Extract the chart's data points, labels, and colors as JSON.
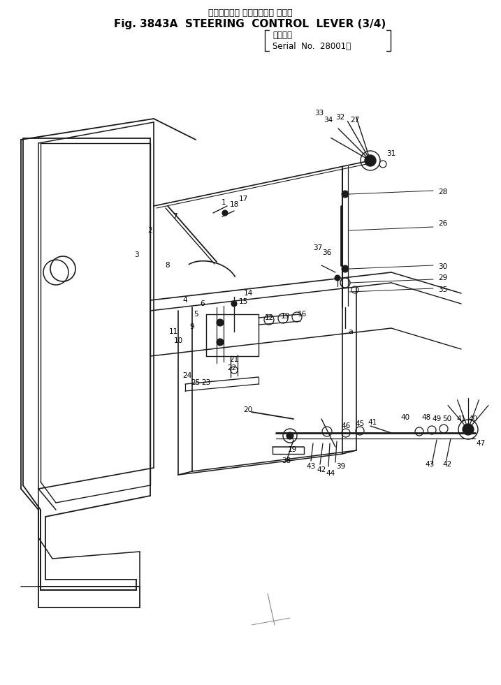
{
  "title_jp": "ステアリング コントロール レバー",
  "title_en": "Fig. 3843A  STEERING  CONTROL  LEVER (3/4)",
  "serial_jp": "適用号機",
  "serial_en": "Serial  No.  28001～",
  "bg_color": "#ffffff",
  "lc": "#1a1a1a",
  "figsize": [
    7.17,
    9.81
  ],
  "dpi": 100
}
